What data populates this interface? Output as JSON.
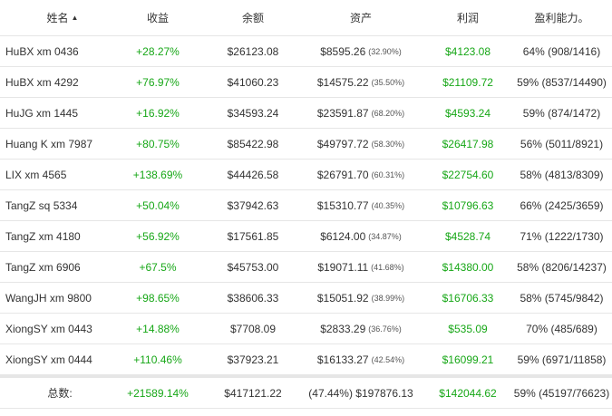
{
  "columns": {
    "name": "姓名",
    "income": "收益",
    "balance": "余额",
    "assets": "资产",
    "profit": "利润",
    "ability": "盈利能力。"
  },
  "rows": [
    {
      "name": "HuBX xm 0436",
      "income": "+28.27%",
      "balance": "$26123.08",
      "assets": "$8595.26",
      "assets_pct": "(32.90%)",
      "profit": "$4123.08",
      "ability": "64% (908/1416)"
    },
    {
      "name": "HuBX xm 4292",
      "income": "+76.97%",
      "balance": "$41060.23",
      "assets": "$14575.22",
      "assets_pct": "(35.50%)",
      "profit": "$21109.72",
      "ability": "59% (8537/14490)"
    },
    {
      "name": "HuJG xm 1445",
      "income": "+16.92%",
      "balance": "$34593.24",
      "assets": "$23591.87",
      "assets_pct": "(68.20%)",
      "profit": "$4593.24",
      "ability": "59% (874/1472)"
    },
    {
      "name": "Huang K xm 7987",
      "income": "+80.75%",
      "balance": "$85422.98",
      "assets": "$49797.72",
      "assets_pct": "(58.30%)",
      "profit": "$26417.98",
      "ability": "56% (5011/8921)"
    },
    {
      "name": "LIX xm 4565",
      "income": "+138.69%",
      "balance": "$44426.58",
      "assets": "$26791.70",
      "assets_pct": "(60.31%)",
      "profit": "$22754.60",
      "ability": "58% (4813/8309)"
    },
    {
      "name": "TangZ sq 5334",
      "income": "+50.04%",
      "balance": "$37942.63",
      "assets": "$15310.77",
      "assets_pct": "(40.35%)",
      "profit": "$10796.63",
      "ability": "66% (2425/3659)"
    },
    {
      "name": "TangZ xm 4180",
      "income": "+56.92%",
      "balance": "$17561.85",
      "assets": "$6124.00",
      "assets_pct": "(34.87%)",
      "profit": "$4528.74",
      "ability": "71% (1222/1730)"
    },
    {
      "name": "TangZ xm 6906",
      "income": "+67.5%",
      "balance": "$45753.00",
      "assets": "$19071.11",
      "assets_pct": "(41.68%)",
      "profit": "$14380.00",
      "ability": "58% (8206/14237)"
    },
    {
      "name": "WangJH xm 9800",
      "income": "+98.65%",
      "balance": "$38606.33",
      "assets": "$15051.92",
      "assets_pct": "(38.99%)",
      "profit": "$16706.33",
      "ability": "58% (5745/9842)"
    },
    {
      "name": "XiongSY xm 0443",
      "income": "+14.88%",
      "balance": "$7708.09",
      "assets": "$2833.29",
      "assets_pct": "(36.76%)",
      "profit": "$535.09",
      "ability": "70% (485/689)"
    },
    {
      "name": "XiongSY xm 0444",
      "income": "+110.46%",
      "balance": "$37923.21",
      "assets": "$16133.27",
      "assets_pct": "(42.54%)",
      "profit": "$16099.21",
      "ability": "59% (6971/11858)"
    }
  ],
  "total": {
    "label": "总数:",
    "income": "+21589.14%",
    "balance": "$417121.22",
    "assets": "(47.44%) $197876.13",
    "profit": "$142044.62",
    "ability": "59% (45197/76623)"
  },
  "colors": {
    "positive": "#17a717",
    "border": "#e6e6e6"
  },
  "icons": {
    "sort": "sort-ascending-icon"
  }
}
